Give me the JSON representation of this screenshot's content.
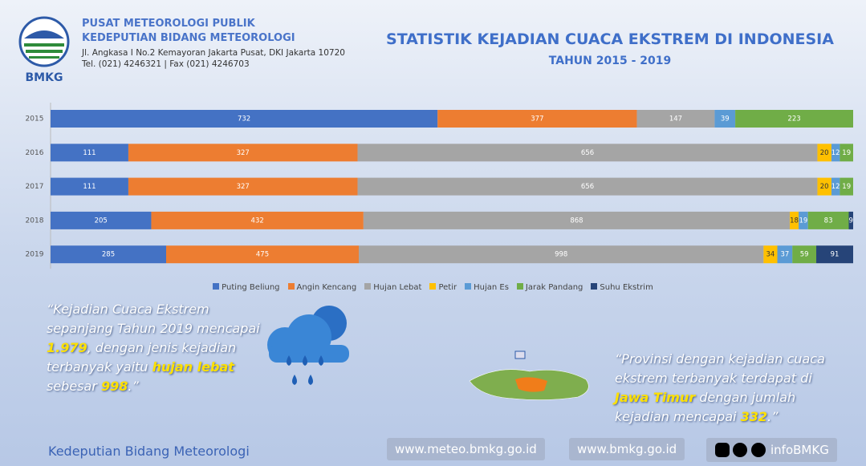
{
  "header": {
    "org": "PUSAT METEOROLOGI PUBLIK",
    "dept": "KEDEPUTIAN BIDANG METEOROLOGI",
    "address": "Jl. Angkasa I No.2 Kemayoran Jakarta Pusat, DKI Jakarta 10720",
    "phone": "Tel. (021) 4246321 | Fax (021) 4246703",
    "logo": "BMKG"
  },
  "chart_data": {
    "type": "bar",
    "orientation": "horizontal",
    "stacked100": true,
    "title": "STATISTIK KEJADIAN CUACA EKSTREM DI INDONESIA",
    "subtitle": "TAHUN 2015 - 2019",
    "categories": [
      "2015",
      "2016",
      "2017",
      "2018",
      "2019"
    ],
    "series": [
      {
        "name": "Puting Beliung",
        "color": "#4472c4",
        "values": [
          732,
          111,
          111,
          205,
          285
        ]
      },
      {
        "name": "Angin Kencang",
        "color": "#ed7d31",
        "values": [
          377,
          327,
          327,
          432,
          475
        ]
      },
      {
        "name": "Hujan Lebat",
        "color": "#a5a5a5",
        "values": [
          147,
          656,
          656,
          868,
          998
        ]
      },
      {
        "name": "Petir",
        "color": "#ffc000",
        "values": [
          null,
          20,
          20,
          18,
          34
        ]
      },
      {
        "name": "Hujan Es",
        "color": "#5b9bd5",
        "values": [
          39,
          12,
          12,
          19,
          37
        ]
      },
      {
        "name": "Jarak Pandang",
        "color": "#70ad47",
        "values": [
          223,
          19,
          19,
          83,
          59
        ]
      },
      {
        "name": "Suhu Ekstrim",
        "color": "#264478",
        "values": [
          null,
          null,
          null,
          9,
          91
        ]
      }
    ],
    "legend": "bottom"
  },
  "quotes": [
    {
      "runs": [
        {
          "text": "“Kejadian Cuaca Ekstrem sepanjang Tahun 2019 mencapai "
        },
        {
          "text": "1.979",
          "highlight": true
        },
        {
          "text": ", dengan jenis kejadian terbanyak yaitu "
        },
        {
          "text": "hujan lebat",
          "highlight": true
        },
        {
          "text": " sebesar "
        },
        {
          "text": "998",
          "highlight": true
        },
        {
          "text": ".”"
        }
      ]
    },
    {
      "runs": [
        {
          "text": "“Provinsi dengan kejadian cuaca ekstrem terbanyak terdapat di "
        },
        {
          "text": "Jawa Timur",
          "highlight": true
        },
        {
          "text": " dengan jumlah kejadian mencapai "
        },
        {
          "text": "332",
          "highlight": true
        },
        {
          "text": ".”"
        }
      ]
    }
  ],
  "footer": {
    "dept": "Kedeputian Bidang Meteorologi",
    "site1": "www.meteo.bmkg.go.id",
    "site2": "www.bmkg.go.id",
    "social": "infoBMKG"
  }
}
